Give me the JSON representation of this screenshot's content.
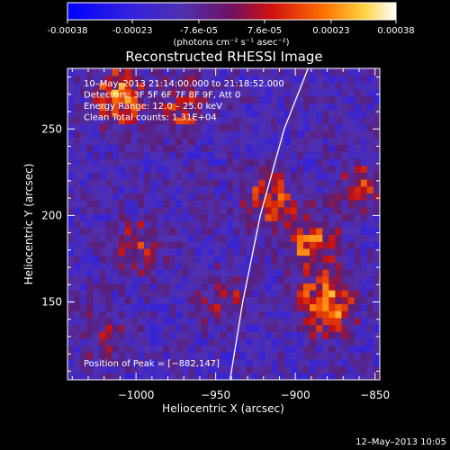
{
  "colorbar": {
    "ticks": [
      "-0.00038",
      "-0.00023",
      "-7.6e-05",
      "7.6e-05",
      "0.00023",
      "0.00038"
    ],
    "unit_label": "(photons cm⁻² s⁻¹ asec⁻²)",
    "range": [
      -0.00038,
      0.00038
    ]
  },
  "chart_data": {
    "type": "heatmap",
    "title": "Reconstructed RHESSI Image",
    "xlabel": "Heliocentric X (arcsec)",
    "ylabel": "Heliocentric Y (arcsec)",
    "xlim": [
      -1043,
      -847
    ],
    "ylim": [
      105,
      285
    ],
    "x_ticks": [
      -1000,
      -950,
      -900,
      -850
    ],
    "y_ticks": [
      150,
      200,
      250
    ],
    "x_tick_labels": [
      "−1000",
      "−950",
      "−900",
      "−850"
    ],
    "y_tick_labels": [
      "150",
      "200",
      "250"
    ],
    "annotations": [
      "10–May–2013 21:14:00.000 to 21:18:52.000",
      "Detectors: 3F 5F 6F 7F 8F 9F, Att 0",
      "Energy Range: 12.0 – 25.0 keV",
      "Clean     Total counts: 1.31E+04"
    ],
    "peak_label": "Position of Peak = [−882,147]",
    "peak_position": [
      -882,
      147
    ],
    "limb_curve": [
      [
        -941,
        105
      ],
      [
        -933,
        150
      ],
      [
        -922,
        200
      ],
      [
        -907,
        250
      ],
      [
        -892,
        285
      ]
    ],
    "hot_spots": [
      {
        "x": -883,
        "y": 147,
        "value": 0.00038
      },
      {
        "x": -892,
        "y": 183,
        "value": 0.0003
      },
      {
        "x": -918,
        "y": 207,
        "value": 0.00024
      },
      {
        "x": -1013,
        "y": 267,
        "value": 0.0003
      },
      {
        "x": -972,
        "y": 260,
        "value": 0.0002
      },
      {
        "x": -1000,
        "y": 180,
        "value": 0.00016
      },
      {
        "x": -948,
        "y": 150,
        "value": 0.00014
      },
      {
        "x": -1022,
        "y": 130,
        "value": 0.00012
      },
      {
        "x": -860,
        "y": 215,
        "value": 0.00016
      }
    ],
    "grid": false
  },
  "footer": {
    "timestamp": "12–May–2013 10:05"
  }
}
